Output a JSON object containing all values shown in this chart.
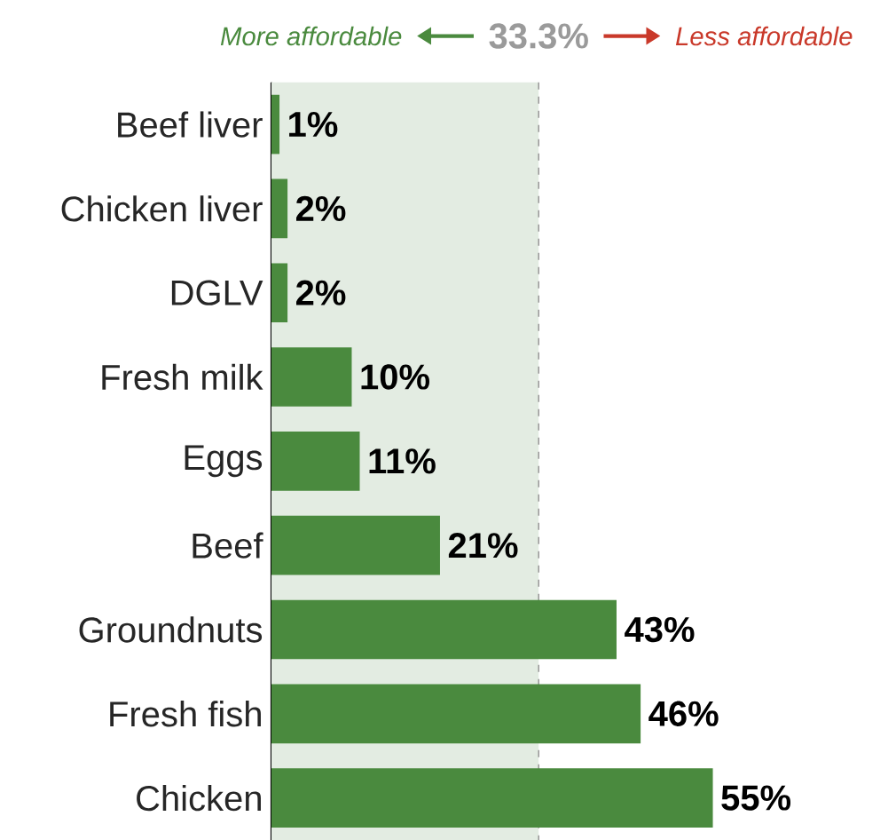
{
  "chart_data": {
    "type": "bar",
    "orientation": "horizontal",
    "categories": [
      "Beef liver",
      "Chicken liver",
      "DGLV",
      "Fresh milk",
      "Eggs",
      "Beef",
      "Groundnuts",
      "Fresh fish",
      "Chicken"
    ],
    "values": [
      1,
      2,
      2,
      10,
      11,
      21,
      43,
      46,
      55
    ],
    "value_labels": [
      "1%",
      "2%",
      "2%",
      "10%",
      "11%",
      "21%",
      "43%",
      "46%",
      "55%"
    ],
    "color": "#4a8a3e",
    "bands": [
      {
        "axis": "x",
        "from": 0,
        "to": 33.3,
        "color": "#e3ece2"
      }
    ],
    "ref_lines": [
      {
        "axis": "x",
        "value": 33.3,
        "label": "33.3%",
        "color": "#9a9a9a",
        "line_style": "dashed"
      }
    ],
    "annotations": [
      "More affordable",
      "Less affordable"
    ]
  }
}
